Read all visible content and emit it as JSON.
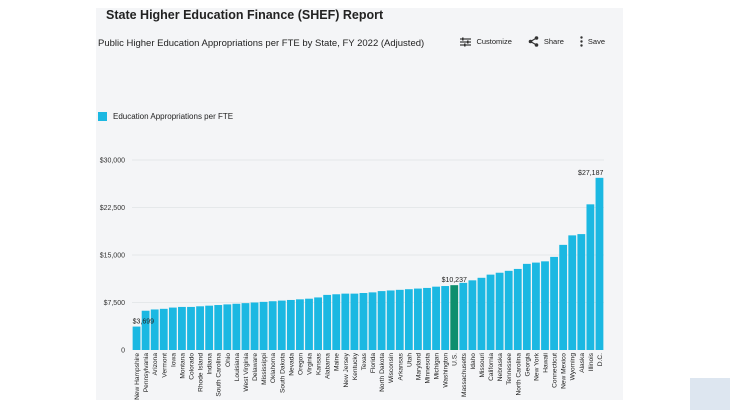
{
  "report": {
    "title": "State Higher Education Finance (SHEF) Report"
  },
  "toolbar": {
    "customize_label": "Customize",
    "share_label": "Share",
    "save_label": "Save",
    "customize_icon": "sliders-icon",
    "share_icon": "share-icon",
    "save_icon": "more-vertical-icon"
  },
  "colors": {
    "bar": "#1bb8e2",
    "highlight": "#0e8f6e",
    "grid": "#e1e3e6",
    "axis_text": "#333333"
  },
  "chart_data": {
    "type": "bar",
    "title": "Public Higher Education Appropriations per FTE by State, FY 2022 (Adjusted)",
    "legend": [
      "Education Appropriations per FTE"
    ],
    "legend_position": "top-left",
    "ylim": [
      0,
      30000
    ],
    "yticks": [
      "0",
      "$7,500",
      "$15,000",
      "$22,500",
      "$30,000"
    ],
    "ytick_values": [
      0,
      7500,
      15000,
      22500,
      30000
    ],
    "grid": true,
    "highlight_category": "U.S.",
    "categories": [
      "New Hampshire",
      "Pennsylvania",
      "Arizona",
      "Vermont",
      "Iowa",
      "Montana",
      "Colorado",
      "Rhode Island",
      "Indiana",
      "South Carolina",
      "Ohio",
      "Louisiana",
      "West Virginia",
      "Delaware",
      "Mississippi",
      "Oklahoma",
      "South Dakota",
      "Nevada",
      "Oregon",
      "Virginia",
      "Kansas",
      "Alabama",
      "Maine",
      "New Jersey",
      "Kentucky",
      "Texas",
      "Florida",
      "North Dakota",
      "Wisconsin",
      "Arkansas",
      "Utah",
      "Maryland",
      "Minnesota",
      "Michigan",
      "Washington",
      "U.S.",
      "Massachusetts",
      "Idaho",
      "Missouri",
      "California",
      "Nebraska",
      "Tennessee",
      "North Carolina",
      "Georgia",
      "New York",
      "Hawaii",
      "Connecticut",
      "New Mexico",
      "Wyoming",
      "Alaska",
      "Illinois",
      "D.C."
    ],
    "values": [
      3699,
      6200,
      6400,
      6500,
      6700,
      6800,
      6800,
      6900,
      7000,
      7100,
      7200,
      7300,
      7400,
      7500,
      7600,
      7700,
      7800,
      7900,
      8000,
      8100,
      8300,
      8700,
      8800,
      8900,
      8900,
      9000,
      9100,
      9300,
      9400,
      9500,
      9600,
      9700,
      9800,
      10000,
      10100,
      10237,
      10600,
      11000,
      11400,
      11900,
      12200,
      12500,
      12800,
      13600,
      13800,
      14000,
      14700,
      16600,
      18100,
      18300,
      23000,
      27187
    ],
    "data_labels": [
      {
        "category": "New Hampshire",
        "text": "$3,699"
      },
      {
        "category": "U.S.",
        "text": "$10,237"
      },
      {
        "category": "D.C.",
        "text": "$27,187"
      }
    ]
  }
}
